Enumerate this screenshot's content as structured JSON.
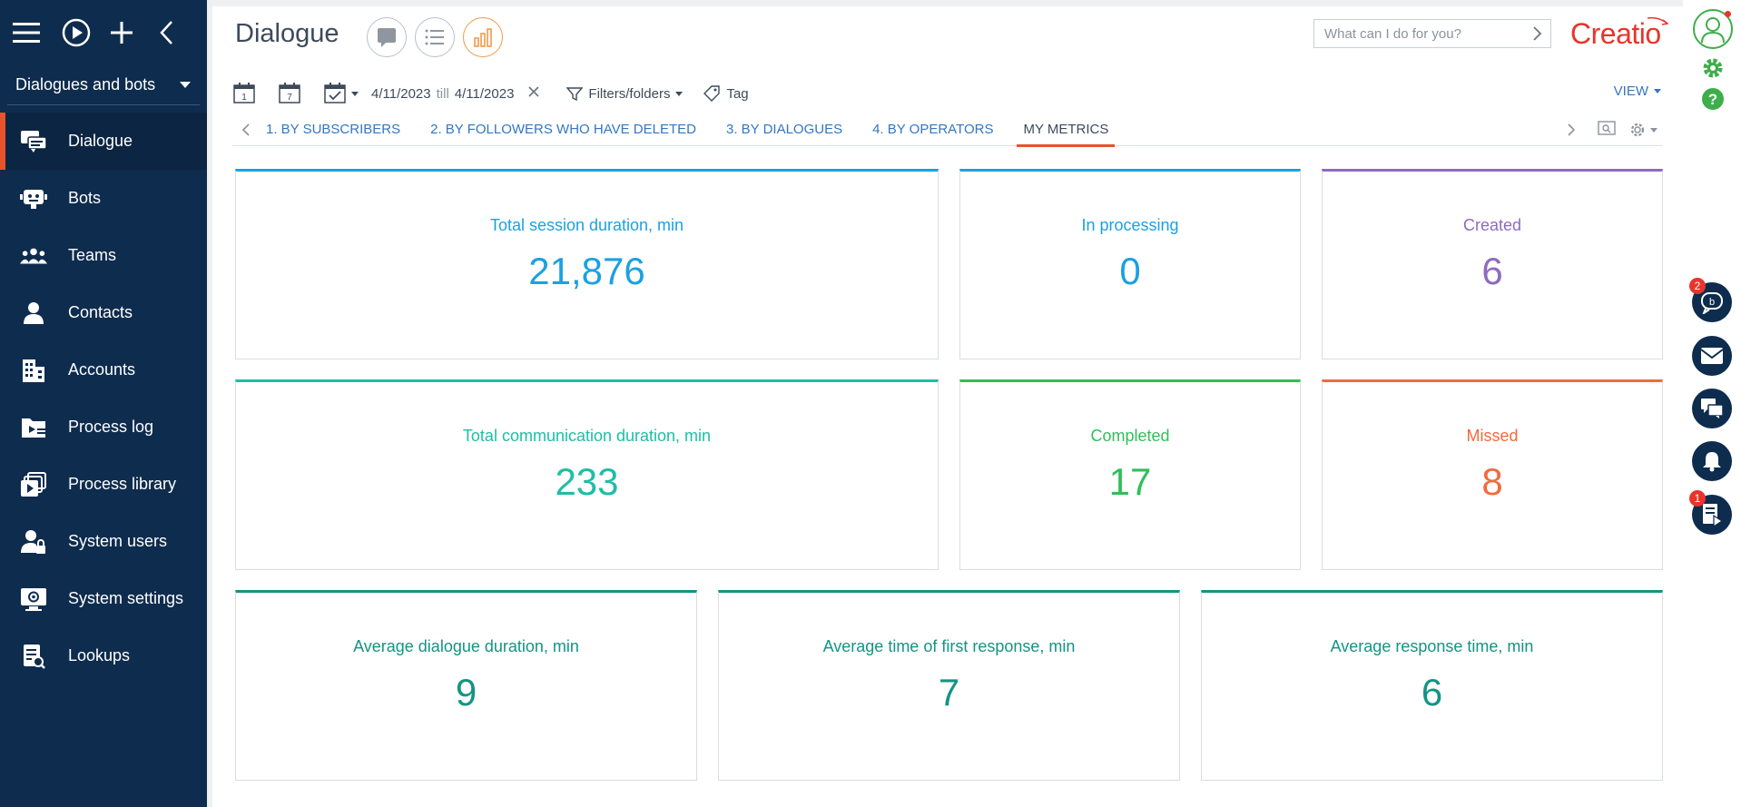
{
  "sidebar": {
    "section_label": "Dialogues and bots",
    "items": [
      {
        "label": "Dialogue",
        "icon": "dialogue-icon",
        "active": true
      },
      {
        "label": "Bots",
        "icon": "bot-icon"
      },
      {
        "label": "Teams",
        "icon": "teams-icon"
      },
      {
        "label": "Contacts",
        "icon": "contact-icon"
      },
      {
        "label": "Accounts",
        "icon": "accounts-icon"
      },
      {
        "label": "Process log",
        "icon": "process-log-icon"
      },
      {
        "label": "Process library",
        "icon": "process-library-icon"
      },
      {
        "label": "System users",
        "icon": "system-users-icon"
      },
      {
        "label": "System settings",
        "icon": "system-settings-icon"
      },
      {
        "label": "Lookups",
        "icon": "lookups-icon"
      }
    ]
  },
  "header": {
    "title": "Dialogue",
    "search_placeholder": "What can I do for you?",
    "logo_text": "Creatio"
  },
  "filters": {
    "date_from": "4/11/2023",
    "till_label": "till",
    "date_to": "4/11/2023",
    "filters_label": "Filters/folders",
    "tag_label": "Tag",
    "view_label": "VIEW"
  },
  "tabs": [
    {
      "label": "1. BY SUBSCRIBERS"
    },
    {
      "label": "2. BY FOLLOWERS WHO HAVE DELETED"
    },
    {
      "label": "3. BY DIALOGUES"
    },
    {
      "label": "4. BY OPERATORS"
    },
    {
      "label": "MY METRICS",
      "active": true
    }
  ],
  "metrics": [
    {
      "label": "Total session duration, min",
      "value": "21,876",
      "color": "#1ba1e2"
    },
    {
      "label": "In processing",
      "value": "0",
      "color": "#1ba1e2"
    },
    {
      "label": "Created",
      "value": "6",
      "color": "#8e6bbf"
    },
    {
      "label": "Total communication duration, min",
      "value": "233",
      "color": "#1ebea5"
    },
    {
      "label": "Completed",
      "value": "17",
      "color": "#2fbf5a"
    },
    {
      "label": "Missed",
      "value": "8",
      "color": "#f26a3d"
    },
    {
      "label": "Average dialogue duration, min",
      "value": "9",
      "color": "#149483"
    },
    {
      "label": "Average time of first response, min",
      "value": "7",
      "color": "#149483"
    },
    {
      "label": "Average response time, min",
      "value": "6",
      "color": "#149483"
    }
  ],
  "rail": {
    "chat_badge": "2",
    "feed_badge": "1"
  }
}
